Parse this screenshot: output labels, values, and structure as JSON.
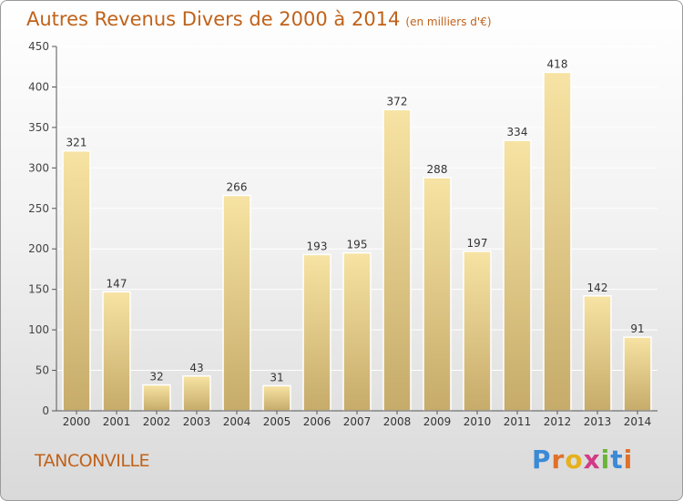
{
  "title": "Autres Revenus Divers de 2000 à 2014",
  "subtitle": "(en milliers d'€)",
  "location": "TANCONVILLE",
  "logo_text": "Proxiti",
  "colors": {
    "title": "#c0621a",
    "bar_light": "#f7e3a3",
    "bar_dark": "#c6ab6a"
  },
  "chart_data": {
    "type": "bar",
    "categories": [
      "2000",
      "2001",
      "2002",
      "2003",
      "2004",
      "2005",
      "2006",
      "2007",
      "2008",
      "2009",
      "2010",
      "2011",
      "2012",
      "2013",
      "2014"
    ],
    "values": [
      321,
      147,
      32,
      43,
      266,
      31,
      193,
      195,
      372,
      288,
      197,
      334,
      418,
      142,
      91
    ],
    "ylim": [
      0,
      450
    ],
    "yticks": [
      0,
      50,
      100,
      150,
      200,
      250,
      300,
      350,
      400,
      450
    ],
    "grid": true
  }
}
